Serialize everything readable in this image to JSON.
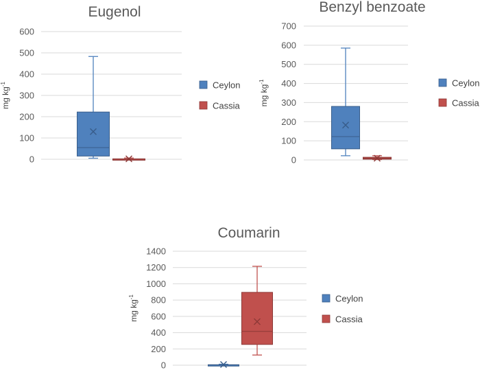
{
  "colors": {
    "ceylon_fill": "#4F81BD",
    "ceylon_stroke": "#385D8A",
    "cassia_fill": "#C0504D",
    "cassia_stroke": "#8C3836",
    "grid": "#D9D9D9",
    "text": "#595959"
  },
  "chart_data": [
    {
      "type": "boxplot",
      "title": "Eugenol",
      "ylabel": "mg kg",
      "ylabel_sup": "-1",
      "ylim": [
        0,
        600
      ],
      "yticks": [
        "0",
        "100",
        "200",
        "300",
        "400",
        "500",
        "600"
      ],
      "legend": [
        "Ceylon",
        "Cassia"
      ],
      "series": [
        {
          "name": "Ceylon",
          "min": 5,
          "q1": 15,
          "median": 55,
          "q3": 222,
          "max": 483,
          "mean": 130
        },
        {
          "name": "Cassia",
          "min": 0,
          "q1": 0,
          "median": 1,
          "q3": 2,
          "max": 6,
          "mean": 2
        }
      ]
    },
    {
      "type": "boxplot",
      "title": "Benzyl benzoate",
      "ylabel": "mg kg",
      "ylabel_sup": "-1",
      "ylim": [
        0,
        700
      ],
      "yticks": [
        "0",
        "100",
        "200",
        "300",
        "400",
        "500",
        "600",
        "700"
      ],
      "legend": [
        "Ceylon",
        "Cassia"
      ],
      "series": [
        {
          "name": "Ceylon",
          "min": 22,
          "q1": 58,
          "median": 122,
          "q3": 280,
          "max": 585,
          "mean": 182
        },
        {
          "name": "Cassia",
          "min": 2,
          "q1": 4,
          "median": 8,
          "q3": 14,
          "max": 22,
          "mean": 9
        }
      ]
    },
    {
      "type": "boxplot",
      "title": "Coumarin",
      "ylabel": "mg kg",
      "ylabel_sup": "-1",
      "ylim": [
        0,
        1400
      ],
      "yticks": [
        "0",
        "200",
        "400",
        "600",
        "800",
        "1000",
        "1200",
        "1400"
      ],
      "legend": [
        "Ceylon",
        "Cassia"
      ],
      "series": [
        {
          "name": "Ceylon",
          "min": 0,
          "q1": 1,
          "median": 3,
          "q3": 6,
          "max": 12,
          "mean": 8
        },
        {
          "name": "Cassia",
          "min": 125,
          "q1": 255,
          "median": 415,
          "q3": 895,
          "max": 1215,
          "mean": 535
        }
      ]
    }
  ]
}
